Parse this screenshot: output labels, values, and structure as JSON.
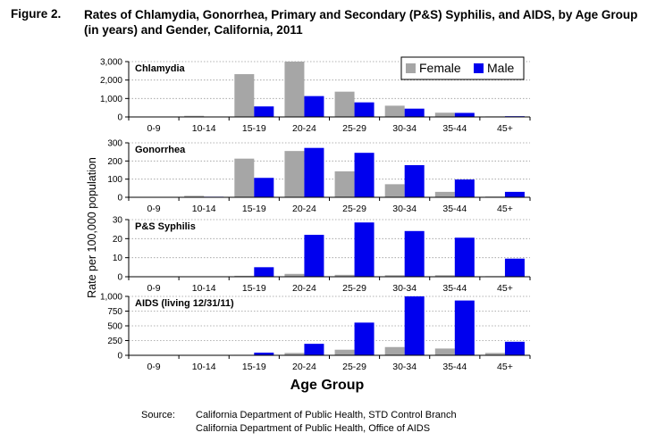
{
  "figure": {
    "label": "Figure 2.",
    "title": "Rates of Chlamydia, Gonorrhea, Primary and Secondary (P&S) Syphilis, and AIDS, by Age Group (in years) and Gender, California, 2011"
  },
  "source": {
    "label": "Source:",
    "lines": [
      "California Department of Public Health, STD Control Branch",
      "California Department of Public Health, Office of AIDS"
    ]
  },
  "colors": {
    "female": "#a6a6a6",
    "male": "#0000ee"
  },
  "chart_data": {
    "type": "bar",
    "ylabel": "Rate per 100,000 population",
    "xlabel": "Age Group",
    "legend": {
      "placement": "top-right",
      "entries": [
        "Female",
        "Male"
      ]
    },
    "grid": true,
    "categories": [
      "0-9",
      "10-14",
      "15-19",
      "20-24",
      "25-29",
      "30-34",
      "35-44",
      "45+"
    ],
    "panels": [
      {
        "title": "Chlamydia",
        "ylim": [
          0,
          3000
        ],
        "yticks": [
          0,
          1000,
          2000,
          3000
        ],
        "ytick_labels": [
          "0",
          "1,000",
          "2,000",
          "3,000"
        ],
        "series": [
          {
            "name": "Female",
            "values": [
              5,
              60,
              2320,
              3080,
              1370,
              610,
              230,
              30
            ]
          },
          {
            "name": "Male",
            "values": [
              2,
              10,
              570,
              1130,
              790,
              450,
              220,
              40
            ]
          }
        ]
      },
      {
        "title": "Gonorrhea",
        "ylim": [
          0,
          300
        ],
        "yticks": [
          0,
          100,
          200,
          300
        ],
        "ytick_labels": [
          "0",
          "100",
          "200",
          "300"
        ],
        "series": [
          {
            "name": "Female",
            "values": [
              1,
              8,
              213,
              255,
              143,
              72,
              30,
              4
            ]
          },
          {
            "name": "Male",
            "values": [
              1,
              3,
              107,
              272,
              245,
              177,
              98,
              30
            ]
          }
        ]
      },
      {
        "title": "P&S Syphilis",
        "ylim": [
          0,
          30
        ],
        "yticks": [
          0,
          10,
          20,
          30
        ],
        "ytick_labels": [
          "0",
          "10",
          "20",
          "30"
        ],
        "series": [
          {
            "name": "Female",
            "values": [
              0,
              0,
              0.5,
              1.5,
              1.0,
              0.8,
              0.8,
              0.3
            ]
          },
          {
            "name": "Male",
            "values": [
              0,
              0.1,
              5,
              22,
              28.5,
              24,
              20.5,
              9.5
            ]
          }
        ]
      },
      {
        "title": "AIDS (living 12/31/11)",
        "ylim": [
          0,
          1000
        ],
        "yticks": [
          0,
          250,
          500,
          750,
          1000
        ],
        "ytick_labels": [
          "0",
          "250",
          "500",
          "750",
          "1,000"
        ],
        "series": [
          {
            "name": "Female",
            "values": [
              1,
              2,
              8,
              40,
              95,
              140,
              115,
              40
            ]
          },
          {
            "name": "Male",
            "values": [
              1,
              3,
              45,
              195,
              555,
              1000,
              930,
              230
            ]
          }
        ]
      }
    ]
  }
}
